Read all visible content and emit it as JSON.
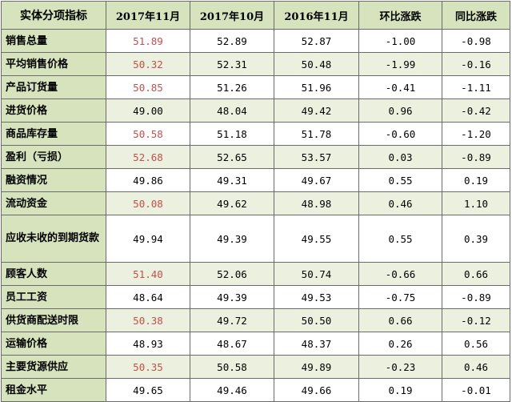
{
  "headers": [
    "实体分项指标",
    "2017年11月",
    "2017年10月",
    "2016年11月",
    "环比涨跌",
    "同比涨跌"
  ],
  "rows": [
    {
      "label": "销售总量",
      "nov2017": "51.89",
      "oct2017": "52.89",
      "nov2016": "52.87",
      "mom": "-1.00",
      "yoy": "-0.98"
    },
    {
      "label": "平均销售价格",
      "nov2017": "50.32",
      "oct2017": "52.31",
      "nov2016": "50.48",
      "mom": "-1.99",
      "yoy": "-0.16"
    },
    {
      "label": "产品订货量",
      "nov2017": "50.85",
      "oct2017": "51.26",
      "nov2016": "51.96",
      "mom": "-0.41",
      "yoy": "-1.11"
    },
    {
      "label": "进货价格",
      "nov2017": "49.00",
      "oct2017": "48.04",
      "nov2016": "49.42",
      "mom": "0.96",
      "yoy": "-0.42"
    },
    {
      "label": "商品库存量",
      "nov2017": "50.58",
      "oct2017": "51.18",
      "nov2016": "51.78",
      "mom": "-0.60",
      "yoy": "-1.20"
    },
    {
      "label": "盈利（亏损）",
      "nov2017": "52.68",
      "oct2017": "52.65",
      "nov2016": "53.57",
      "mom": "0.03",
      "yoy": "-0.89"
    },
    {
      "label": "融资情况",
      "nov2017": "49.86",
      "oct2017": "49.31",
      "nov2016": "49.67",
      "mom": "0.55",
      "yoy": "0.19"
    },
    {
      "label": "流动资金",
      "nov2017": "50.08",
      "oct2017": "49.62",
      "nov2016": "48.98",
      "mom": "0.46",
      "yoy": "1.10"
    },
    {
      "label": "应收未收的到期货款",
      "nov2017": "49.94",
      "oct2017": "49.39",
      "nov2016": "49.55",
      "mom": "0.55",
      "yoy": "0.39"
    },
    {
      "label": "顾客人数",
      "nov2017": "51.40",
      "oct2017": "52.06",
      "nov2016": "50.74",
      "mom": "-0.66",
      "yoy": "0.66"
    },
    {
      "label": "员工工资",
      "nov2017": "48.64",
      "oct2017": "49.39",
      "nov2016": "49.53",
      "mom": "-0.75",
      "yoy": "-0.89"
    },
    {
      "label": "供货商配送时限",
      "nov2017": "50.38",
      "oct2017": "49.72",
      "nov2016": "50.50",
      "mom": "0.66",
      "yoy": "-0.12"
    },
    {
      "label": "运输价格",
      "nov2017": "48.93",
      "oct2017": "48.67",
      "nov2016": "48.37",
      "mom": "0.26",
      "yoy": "0.56"
    },
    {
      "label": "主要货源供应",
      "nov2017": "50.35",
      "oct2017": "50.58",
      "nov2016": "49.89",
      "mom": "-0.23",
      "yoy": "0.46"
    },
    {
      "label": "租金水平",
      "nov2017": "49.65",
      "oct2017": "49.46",
      "nov2016": "49.66",
      "mom": "0.19",
      "yoy": "-0.01"
    }
  ],
  "colors": {
    "header_bg": "#d6e3bc",
    "alt_row_bg": "#ebf1de",
    "highlight_text": "#c0504d",
    "border": "#6b6b6b"
  }
}
